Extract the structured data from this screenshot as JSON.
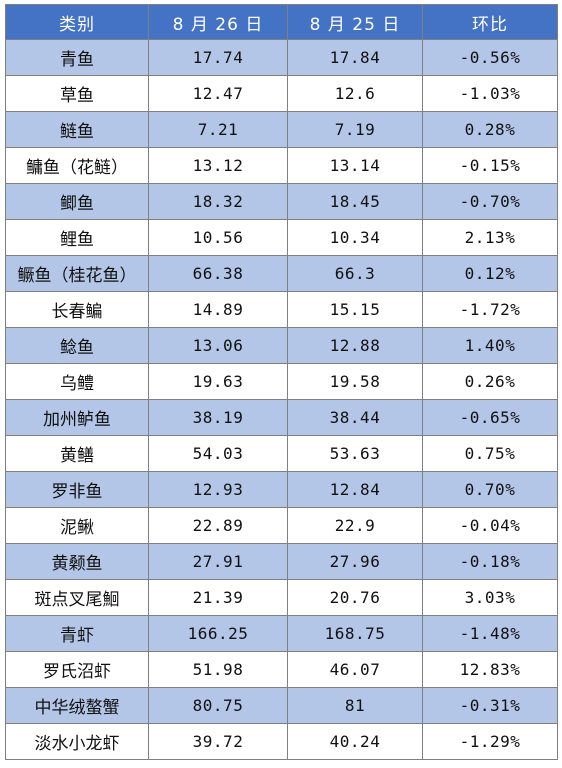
{
  "table": {
    "headers": [
      "类别",
      "8 月 26 日",
      "8 月 25 日",
      "环比"
    ],
    "rows": [
      [
        "青鱼",
        "17.74",
        "17.84",
        "-0.56%"
      ],
      [
        "草鱼",
        "12.47",
        "12.6",
        "-1.03%"
      ],
      [
        "鲢鱼",
        "7.21",
        "7.19",
        "0.28%"
      ],
      [
        "鳙鱼（花鲢）",
        "13.12",
        "13.14",
        "-0.15%"
      ],
      [
        "鲫鱼",
        "18.32",
        "18.45",
        "-0.70%"
      ],
      [
        "鲤鱼",
        "10.56",
        "10.34",
        "2.13%"
      ],
      [
        "鳜鱼（桂花鱼）",
        "66.38",
        "66.3",
        "0.12%"
      ],
      [
        "长春鳊",
        "14.89",
        "15.15",
        "-1.72%"
      ],
      [
        "鲶鱼",
        "13.06",
        "12.88",
        "1.40%"
      ],
      [
        "乌鳢",
        "19.63",
        "19.58",
        "0.26%"
      ],
      [
        "加州鲈鱼",
        "38.19",
        "38.44",
        "-0.65%"
      ],
      [
        "黄鳝",
        "54.03",
        "53.63",
        "0.75%"
      ],
      [
        "罗非鱼",
        "12.93",
        "12.84",
        "0.70%"
      ],
      [
        "泥鳅",
        "22.89",
        "22.9",
        "-0.04%"
      ],
      [
        "黄颡鱼",
        "27.91",
        "27.96",
        "-0.18%"
      ],
      [
        "斑点叉尾鮰",
        "21.39",
        "20.76",
        "3.03%"
      ],
      [
        "青虾",
        "166.25",
        "168.75",
        "-1.48%"
      ],
      [
        "罗氏沼虾",
        "51.98",
        "46.07",
        "12.83%"
      ],
      [
        "中华绒螯蟹",
        "80.75",
        "81",
        "-0.31%"
      ],
      [
        "淡水小龙虾",
        "39.72",
        "40.24",
        "-1.29%"
      ]
    ]
  }
}
